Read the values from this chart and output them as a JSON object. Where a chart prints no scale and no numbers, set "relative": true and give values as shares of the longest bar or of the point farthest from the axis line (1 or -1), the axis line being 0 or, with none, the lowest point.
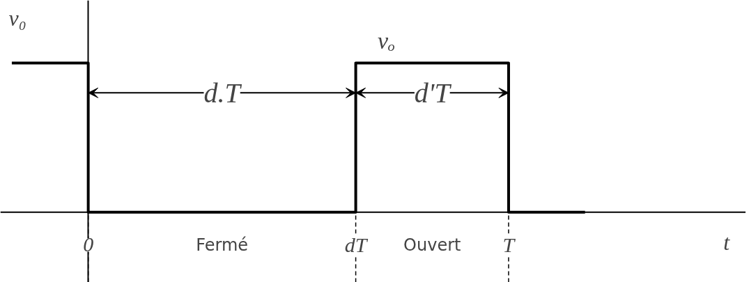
{
  "chart_data": {
    "type": "step",
    "relative": true,
    "ylabel": "v₀",
    "categories": [
      null,
      null,
      "0",
      null,
      null,
      null,
      null,
      null,
      null,
      "dT",
      null,
      null,
      null,
      "T",
      null,
      null
    ],
    "series": [
      {
        "color": "#000000",
        "values": [
          1,
          1,
          0,
          0,
          0,
          0,
          0,
          0,
          0,
          1,
          1,
          1,
          1,
          0,
          0,
          0
        ]
      }
    ],
    "annotations": [
      "d.T",
      "d'T",
      "vₒ",
      "Fermé",
      "Ouvert",
      "t"
    ]
  }
}
